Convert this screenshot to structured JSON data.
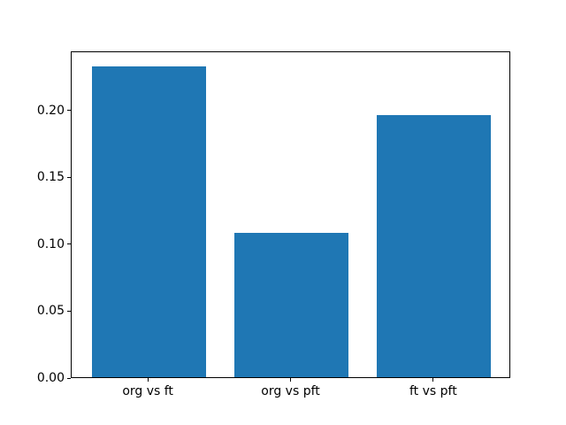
{
  "figure": {
    "background": "#ffffff",
    "title": ""
  },
  "chart_data": {
    "type": "bar",
    "categories": [
      "org vs ft",
      "org vs pft",
      "ft vs pft"
    ],
    "values": [
      0.232,
      0.108,
      0.196
    ],
    "title": "",
    "xlabel": "",
    "ylabel": "",
    "ylim": [
      0,
      0.244
    ],
    "xlim": [
      -0.54,
      2.54
    ],
    "bar_width": 0.8,
    "yticks": [
      "0.00",
      "0.05",
      "0.10",
      "0.15",
      "0.20"
    ],
    "bar_color": "#1f77b4",
    "axis_color": "#000000",
    "tick_label_color": "#000000",
    "grid": false,
    "legend": null
  }
}
